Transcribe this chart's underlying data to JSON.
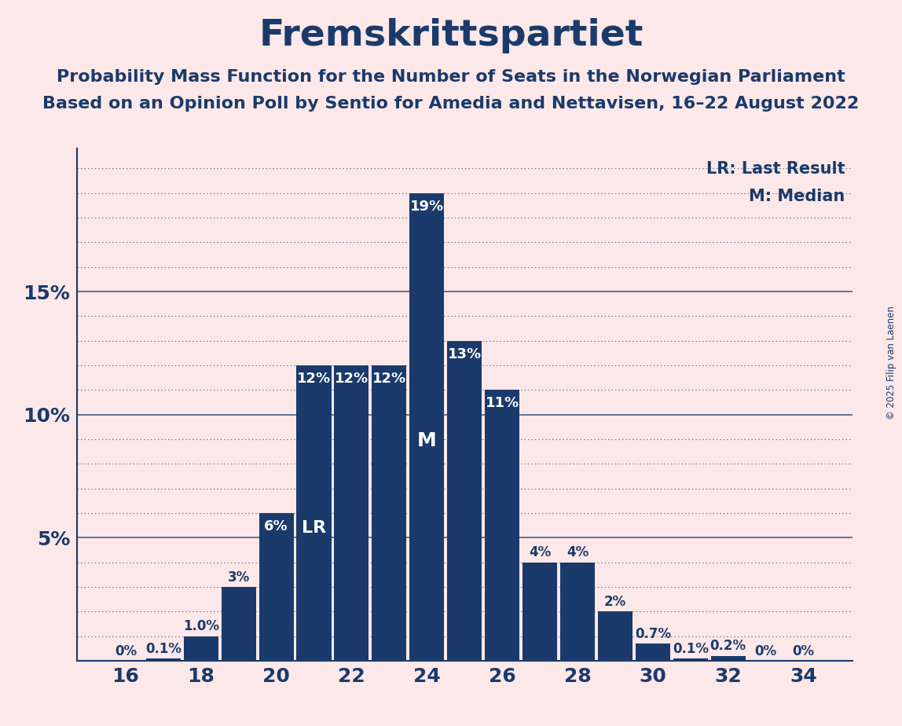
{
  "title": "Fremskrittspartiet",
  "subtitle1": "Probability Mass Function for the Number of Seats in the Norwegian Parliament",
  "subtitle2": "Based on an Opinion Poll by Sentio for Amedia and Nettavisen, 16–22 August 2022",
  "copyright": "© 2025 Filip van Laenen",
  "seats": [
    16,
    17,
    18,
    19,
    20,
    21,
    22,
    23,
    24,
    25,
    26,
    27,
    28,
    29,
    30,
    31,
    32,
    33,
    34
  ],
  "probabilities": [
    0.0,
    0.1,
    1.0,
    3.0,
    6.0,
    12.0,
    12.0,
    12.0,
    19.0,
    13.0,
    11.0,
    4.0,
    4.0,
    2.0,
    0.7,
    0.1,
    0.2,
    0.0,
    0.0
  ],
  "bar_color": "#1a3a6b",
  "bg_color": "#fce8e8",
  "text_color": "#1a3a6b",
  "last_result_seat": 21,
  "median_seat": 24,
  "lr_label": "LR",
  "median_label": "M",
  "legend_lr": "LR: Last Result",
  "legend_m": "M: Median",
  "xticks": [
    16,
    18,
    20,
    22,
    24,
    26,
    28,
    30,
    32,
    34
  ]
}
